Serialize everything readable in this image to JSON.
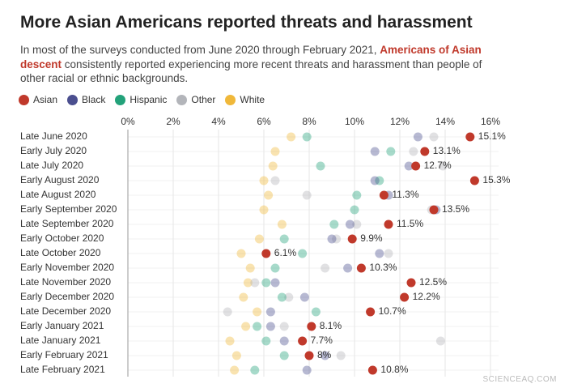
{
  "title": "More Asian Americans reported threats and harassment",
  "subtitle": [
    "In most of the surveys conducted from June 2020 through February 2021, ",
    "Americans of Asian descent",
    " consistently reported experiencing more recent threats and harassment than people of other racial or ethnic backgrounds."
  ],
  "watermark": "SCIENCEAQ.COM",
  "chart_data": {
    "type": "dot",
    "categories": [
      "Late June 2020",
      "Early July 2020",
      "Late July 2020",
      "Early August 2020",
      "Late August 2020",
      "Early September 2020",
      "Late September 2020",
      "Early October 2020",
      "Late October 2020",
      "Early November 2020",
      "Late November 2020",
      "Early December 2020",
      "Late December 2020",
      "Early January 2021",
      "Late January 2021",
      "Early February 2021",
      "Late February 2021"
    ],
    "series": [
      {
        "name": "Asian",
        "color": "#c0392b",
        "values": [
          15.1,
          13.1,
          12.7,
          15.3,
          11.3,
          13.5,
          11.5,
          9.9,
          6.1,
          10.3,
          12.5,
          12.2,
          10.7,
          8.1,
          7.7,
          8,
          10.8
        ],
        "value_labels": [
          "15.1%",
          "13.1%",
          "12.7%",
          "15.3%",
          "11.3%",
          "13.5%",
          "11.5%",
          "9.9%",
          "6.1%",
          "10.3%",
          "12.5%",
          "12.2%",
          "10.7%",
          "8.1%",
          "7.7%",
          "8%",
          "10.8%"
        ]
      },
      {
        "name": "Black",
        "color": "#4b4f8f",
        "values": [
          12.8,
          10.9,
          12.4,
          10.9,
          11.5,
          13.6,
          9.8,
          9.0,
          11.1,
          9.7,
          6.5,
          7.8,
          6.3,
          6.3,
          6.9,
          8.7,
          7.9
        ]
      },
      {
        "name": "Hispanic",
        "color": "#23a27a",
        "values": [
          7.9,
          11.6,
          8.5,
          11.1,
          10.1,
          10.0,
          9.1,
          6.9,
          7.7,
          6.5,
          6.1,
          6.8,
          8.3,
          5.7,
          6.1,
          6.9,
          5.6
        ]
      },
      {
        "name": "Other",
        "color": "#b3b5ba",
        "values": [
          13.5,
          12.6,
          13.9,
          6.5,
          7.9,
          13.4,
          10.1,
          9.2,
          11.5,
          8.7,
          5.6,
          7.1,
          4.4,
          6.9,
          13.8,
          9.4,
          null
        ]
      },
      {
        "name": "White",
        "color": "#f0b83a",
        "values": [
          7.2,
          6.5,
          6.4,
          6.0,
          6.2,
          6.0,
          6.8,
          5.8,
          5.0,
          5.4,
          5.3,
          5.1,
          5.7,
          5.2,
          4.5,
          4.8,
          4.7
        ]
      }
    ],
    "xlim": [
      0,
      16
    ],
    "xticks": [
      {
        "value": 0,
        "label": "0%"
      },
      {
        "value": 2,
        "label": "2%"
      },
      {
        "value": 4,
        "label": "4%"
      },
      {
        "value": 6,
        "label": "6%"
      },
      {
        "value": 8,
        "label": "8%"
      },
      {
        "value": 10,
        "label": "10%"
      },
      {
        "value": 12,
        "label": "12%"
      },
      {
        "value": 14,
        "label": "14%"
      },
      {
        "value": 16,
        "label": "16%"
      }
    ],
    "grid": true
  }
}
